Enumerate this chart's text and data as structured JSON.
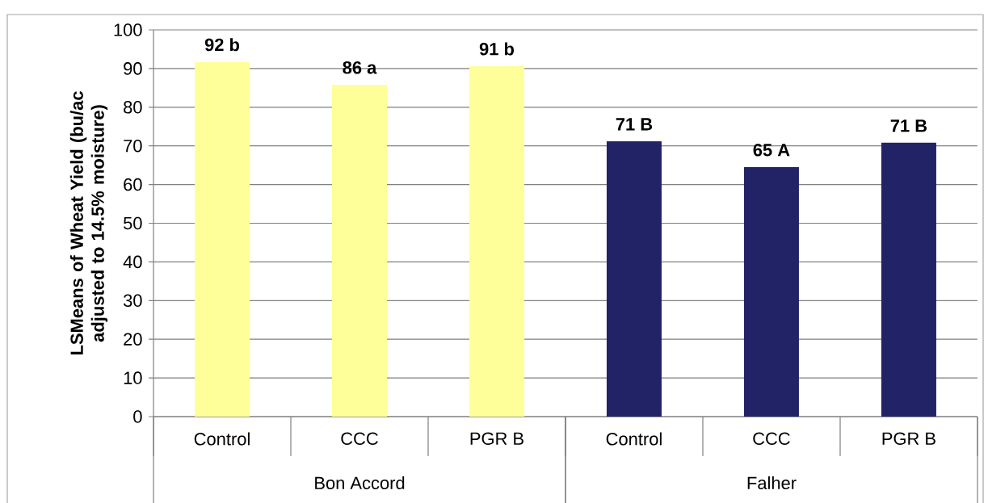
{
  "chart_data": {
    "type": "bar",
    "ylabel": "LSMeans of Wheat Yield (bu/ac adjusted to 14.5% moisture)",
    "categories": [
      "Control",
      "CCC",
      "PGR B",
      "Control",
      "CCC",
      "PGR B"
    ],
    "values": [
      91.7,
      85.8,
      90.6,
      71.2,
      64.5,
      70.8
    ],
    "colors": [
      "#ffff99",
      "#ffff99",
      "#ffff99",
      "#222266",
      "#222266",
      "#222266"
    ],
    "value_labels": [
      "92 b",
      "86 a",
      "91 b",
      "71 B",
      "65 A",
      "71 B"
    ],
    "annotations": [
      "Bon Accord",
      "Falher"
    ],
    "ylim": [
      0,
      100
    ],
    "yticks": [
      0,
      10,
      20,
      30,
      40,
      50,
      60,
      70,
      80,
      90,
      100
    ],
    "grid": "y"
  }
}
